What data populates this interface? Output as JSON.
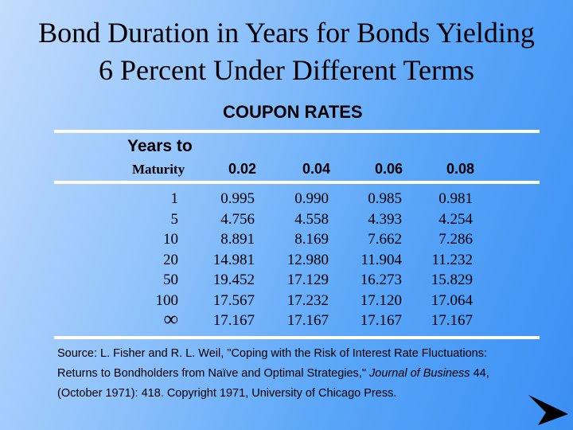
{
  "title": {
    "line1": "Bond Duration in Years for Bonds Yielding",
    "line2": "6 Percent Under Different Terms"
  },
  "table": {
    "group_heading": "COUPON RATES",
    "row_header_line1": "Years to",
    "row_header_line2": "Maturity",
    "rates": [
      "0.02",
      "0.04",
      "0.06",
      "0.08"
    ],
    "rows": [
      {
        "years": "1",
        "values": [
          "0.995",
          "0.990",
          "0.985",
          "0.981"
        ]
      },
      {
        "years": "5",
        "values": [
          "4.756",
          "4.558",
          "4.393",
          "4.254"
        ]
      },
      {
        "years": "10",
        "values": [
          "8.891",
          "8.169",
          "7.662",
          "7.286"
        ]
      },
      {
        "years": "20",
        "values": [
          "14.981",
          "12.980",
          "11.904",
          "11.232"
        ]
      },
      {
        "years": "50",
        "values": [
          "19.452",
          "17.129",
          "16.273",
          "15.829"
        ]
      },
      {
        "years": "100",
        "values": [
          "17.567",
          "17.232",
          "17.120",
          "17.064"
        ]
      },
      {
        "years": "∞",
        "values": [
          "17.167",
          "17.167",
          "17.167",
          "17.167"
        ]
      }
    ]
  },
  "source": {
    "line1": "Source: L. Fisher and R. L. Weil, \"Coping with the Risk of Interest Rate Fluctuations:",
    "line2_pre": "Returns to Bondholders from Naïve and Optimal Strategies,\" ",
    "line2_journal": "Journal of Business",
    "line2_post": " 44,",
    "line3": "(October 1971): 418.  Copyright 1971, University of Chicago Press."
  },
  "nav": {
    "next_icon": "next-arrow-icon",
    "color": "#000000"
  }
}
